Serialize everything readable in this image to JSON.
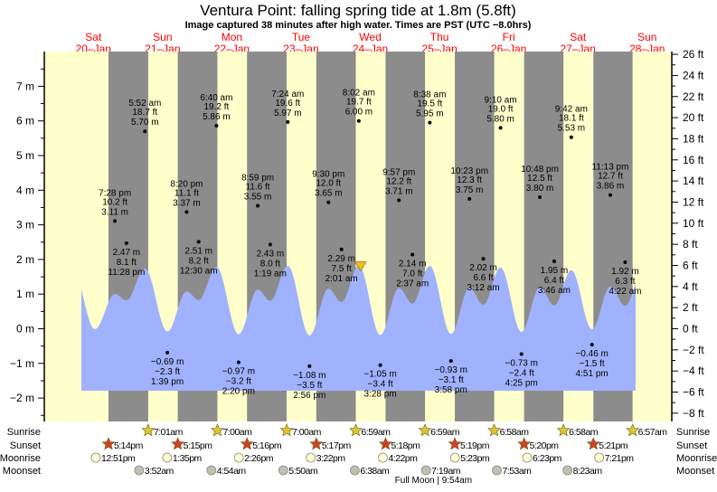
{
  "chart_data": {
    "type": "area",
    "title": "Ventura Point: falling  spring tide at 1.8m (5.8ft)",
    "subtitle": "Image captured 38 minutes after high water. Times are PST (UTC −8.0hrs)",
    "days": [
      {
        "name": "Sat",
        "date": "20–Jan"
      },
      {
        "name": "Sun",
        "date": "21–Jan"
      },
      {
        "name": "Mon",
        "date": "22–Jan"
      },
      {
        "name": "Tue",
        "date": "23–Jan"
      },
      {
        "name": "Wed",
        "date": "24–Jan"
      },
      {
        "name": "Thu",
        "date": "25–Jan"
      },
      {
        "name": "Fri",
        "date": "26–Jan"
      },
      {
        "name": "Sat",
        "date": "27–Jan"
      },
      {
        "name": "Sun",
        "date": "28–Jan"
      }
    ],
    "y_left": {
      "unit": "m",
      "ticks": [
        "7 m",
        "6 m",
        "5 m",
        "4 m",
        "3 m",
        "2 m",
        "1 m",
        "0 m",
        "−1 m",
        "−2 m"
      ],
      "values": [
        7,
        6,
        5,
        4,
        3,
        2,
        1,
        0,
        -1,
        -2
      ]
    },
    "y_right": {
      "unit": "ft",
      "ticks": [
        "26 ft",
        "24 ft",
        "22 ft",
        "20 ft",
        "18 ft",
        "16 ft",
        "14 ft",
        "12 ft",
        "10 ft",
        "8 ft",
        "6 ft",
        "4 ft",
        "2 ft",
        "0 ft",
        "−2 ft",
        "−4 ft",
        "−6 ft",
        "−8 ft"
      ],
      "values": [
        26,
        24,
        22,
        20,
        18,
        16,
        14,
        12,
        10,
        8,
        6,
        4,
        2,
        0,
        -2,
        -4,
        -6,
        -8
      ]
    },
    "extremes": [
      {
        "day": 0,
        "time": "7:28 pm",
        "m": "3.11 m",
        "ft": "10.2 ft",
        "h": 3.11,
        "type": "high"
      },
      {
        "day": 0,
        "time": "11:28 pm",
        "m": "2.47 m",
        "ft": "8.1 ft",
        "h": 2.47,
        "type": "low"
      },
      {
        "day": 1,
        "time": "5:52 am",
        "m": "5.70 m",
        "ft": "18.7 ft",
        "h": 5.7,
        "type": "high"
      },
      {
        "day": 1,
        "time": "1:39 pm",
        "m": "−0.69 m",
        "ft": "−2.3 ft",
        "h": -0.69,
        "type": "low"
      },
      {
        "day": 1,
        "time": "8:20 pm",
        "m": "3.37 m",
        "ft": "11.1 ft",
        "h": 3.37,
        "type": "high"
      },
      {
        "day": 2,
        "time": "12:30 am",
        "m": "2.51 m",
        "ft": "8.2 ft",
        "h": 2.51,
        "type": "low"
      },
      {
        "day": 2,
        "time": "6:40 am",
        "m": "5.86 m",
        "ft": "19.2 ft",
        "h": 5.86,
        "type": "high"
      },
      {
        "day": 2,
        "time": "2:20 pm",
        "m": "−0.97 m",
        "ft": "−3.2 ft",
        "h": -0.97,
        "type": "low"
      },
      {
        "day": 2,
        "time": "8:59 pm",
        "m": "3.55 m",
        "ft": "11.6 ft",
        "h": 3.55,
        "type": "high"
      },
      {
        "day": 3,
        "time": "1:19 am",
        "m": "2.43 m",
        "ft": "8.0 ft",
        "h": 2.43,
        "type": "low"
      },
      {
        "day": 3,
        "time": "7:24 am",
        "m": "5.97 m",
        "ft": "19.6 ft",
        "h": 5.97,
        "type": "high"
      },
      {
        "day": 3,
        "time": "2:56 pm",
        "m": "−1.08 m",
        "ft": "−3.5 ft",
        "h": -1.08,
        "type": "low"
      },
      {
        "day": 3,
        "time": "9:30 pm",
        "m": "3.65 m",
        "ft": "12.0 ft",
        "h": 3.65,
        "type": "high"
      },
      {
        "day": 4,
        "time": "2:01 am",
        "m": "2.29 m",
        "ft": "7.5 ft",
        "h": 2.29,
        "type": "low"
      },
      {
        "day": 4,
        "time": "8:02 am",
        "m": "6.00 m",
        "ft": "19.7 ft",
        "h": 6.0,
        "type": "high"
      },
      {
        "day": 4,
        "time": "3:28 pm",
        "m": "−1.05 m",
        "ft": "−3.4 ft",
        "h": -1.05,
        "type": "low"
      },
      {
        "day": 4,
        "time": "9:57 pm",
        "m": "3.71 m",
        "ft": "12.2 ft",
        "h": 3.71,
        "type": "high"
      },
      {
        "day": 5,
        "time": "2:37 am",
        "m": "2.14 m",
        "ft": "7.0 ft",
        "h": 2.14,
        "type": "low"
      },
      {
        "day": 5,
        "time": "8:38 am",
        "m": "5.95 m",
        "ft": "19.5 ft",
        "h": 5.95,
        "type": "high"
      },
      {
        "day": 5,
        "time": "3:58 pm",
        "m": "−0.93 m",
        "ft": "−3.1 ft",
        "h": -0.93,
        "type": "low"
      },
      {
        "day": 5,
        "time": "10:23 pm",
        "m": "3.75 m",
        "ft": "12.3 ft",
        "h": 3.75,
        "type": "high"
      },
      {
        "day": 6,
        "time": "3:12 am",
        "m": "2.02 m",
        "ft": "6.6 ft",
        "h": 2.02,
        "type": "low"
      },
      {
        "day": 6,
        "time": "9:10 am",
        "m": "5.80 m",
        "ft": "19.0 ft",
        "h": 5.8,
        "type": "high"
      },
      {
        "day": 6,
        "time": "4:25 pm",
        "m": "−0.73 m",
        "ft": "−2.4 ft",
        "h": -0.73,
        "type": "low"
      },
      {
        "day": 6,
        "time": "10:48 pm",
        "m": "3.80 m",
        "ft": "12.5 ft",
        "h": 3.8,
        "type": "high"
      },
      {
        "day": 7,
        "time": "3:46 am",
        "m": "1.95 m",
        "ft": "6.4 ft",
        "h": 1.95,
        "type": "low"
      },
      {
        "day": 7,
        "time": "9:42 am",
        "m": "5.53 m",
        "ft": "18.1 ft",
        "h": 5.53,
        "type": "high"
      },
      {
        "day": 7,
        "time": "4:51 pm",
        "m": "−0.46 m",
        "ft": "−1.5 ft",
        "h": -0.46,
        "type": "low"
      },
      {
        "day": 7,
        "time": "11:13 pm",
        "m": "3.86 m",
        "ft": "12.7 ft",
        "h": 3.86,
        "type": "high"
      },
      {
        "day": 8,
        "time": "4:22 am",
        "m": "1.92 m",
        "ft": "6.3 ft",
        "h": 1.92,
        "type": "low"
      }
    ],
    "current": {
      "m": 1.8,
      "ft": 5.8,
      "day": 4,
      "time": "8:40 am"
    },
    "sun_moon": {
      "labels": {
        "sunrise": "Sunrise",
        "sunset": "Sunset",
        "moonrise": "Moonrise",
        "moonset": "Moonset"
      },
      "sunrise": [
        {
          "day": 1,
          "time": "7:01am"
        },
        {
          "day": 2,
          "time": "7:00am"
        },
        {
          "day": 3,
          "time": "7:00am"
        },
        {
          "day": 4,
          "time": "6:59am"
        },
        {
          "day": 5,
          "time": "6:59am"
        },
        {
          "day": 6,
          "time": "6:58am"
        },
        {
          "day": 7,
          "time": "6:58am"
        },
        {
          "day": 8,
          "time": "6:57am"
        }
      ],
      "sunset": [
        {
          "day": 0,
          "time": "5:14pm"
        },
        {
          "day": 1,
          "time": "5:15pm"
        },
        {
          "day": 2,
          "time": "5:16pm"
        },
        {
          "day": 3,
          "time": "5:17pm"
        },
        {
          "day": 4,
          "time": "5:18pm"
        },
        {
          "day": 5,
          "time": "5:19pm"
        },
        {
          "day": 6,
          "time": "5:20pm"
        },
        {
          "day": 7,
          "time": "5:21pm"
        }
      ],
      "moonrise": [
        {
          "day": 0,
          "time": "12:51pm"
        },
        {
          "day": 1,
          "time": "1:35pm"
        },
        {
          "day": 2,
          "time": "2:26pm"
        },
        {
          "day": 3,
          "time": "3:22pm"
        },
        {
          "day": 4,
          "time": "4:22pm"
        },
        {
          "day": 5,
          "time": "5:23pm"
        },
        {
          "day": 6,
          "time": "6:23pm"
        },
        {
          "day": 7,
          "time": "7:21pm"
        }
      ],
      "moonset": [
        {
          "day": 1,
          "time": "3:52am"
        },
        {
          "day": 2,
          "time": "4:54am"
        },
        {
          "day": 3,
          "time": "5:50am"
        },
        {
          "day": 4,
          "time": "6:38am"
        },
        {
          "day": 5,
          "time": "7:19am"
        },
        {
          "day": 6,
          "time": "7:53am"
        },
        {
          "day": 7,
          "time": "8:23am"
        }
      ],
      "full_moon": {
        "day": 5,
        "time": "9:54am",
        "label": "Full Moon | 9:54am"
      }
    },
    "colors": {
      "day": "#ffffcc",
      "night": "#8c8c8c",
      "water": "#a0b2fd",
      "day_label": "#ff0000",
      "sunrise": "#d8c832",
      "sunset": "#d04028",
      "moonrise": "#ffffd0",
      "moonset": "#c0c0b0",
      "current_marker": "#f0c020"
    }
  }
}
